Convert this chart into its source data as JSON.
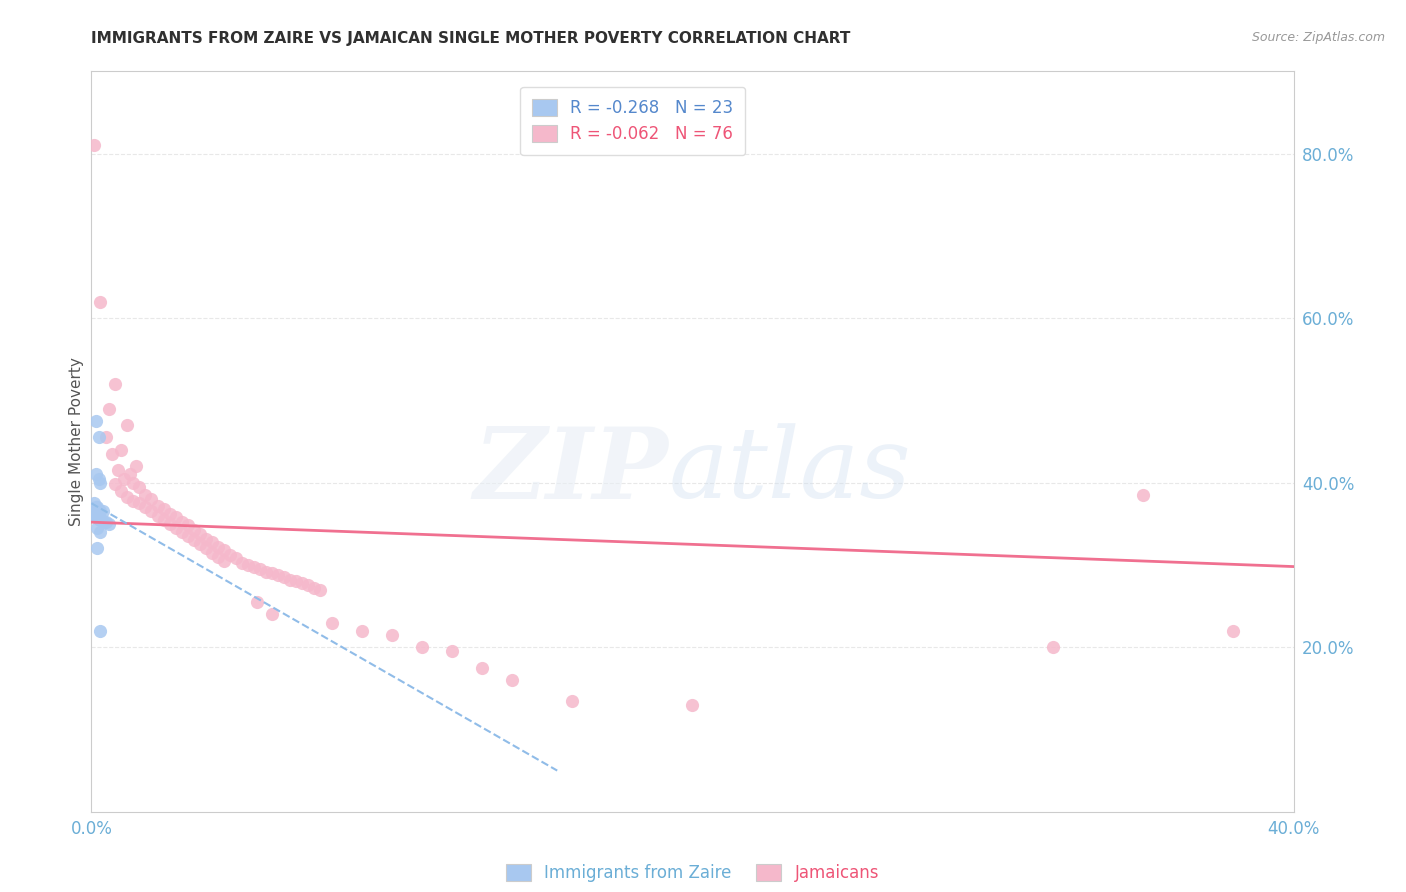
{
  "title": "IMMIGRANTS FROM ZAIRE VS JAMAICAN SINGLE MOTHER POVERTY CORRELATION CHART",
  "source": "Source: ZipAtlas.com",
  "ylabel": "Single Mother Poverty",
  "right_yticks": [
    0.2,
    0.4,
    0.6,
    0.8
  ],
  "right_yticklabels": [
    "20.0%",
    "40.0%",
    "60.0%",
    "80.0%"
  ],
  "xlim": [
    0.0,
    0.4
  ],
  "ylim": [
    0.0,
    0.9
  ],
  "blue_color": "#a8c8f0",
  "pink_color": "#f5b8cb",
  "blue_line_color": "#90bce8",
  "pink_line_color": "#f07090",
  "axis_color": "#6baed6",
  "grid_color": "#e8e8e8",
  "title_color": "#303030",
  "source_color": "#999999",
  "ylabel_color": "#555555",
  "zaire_points": [
    [
      0.0015,
      0.475
    ],
    [
      0.0025,
      0.455
    ],
    [
      0.0015,
      0.41
    ],
    [
      0.0025,
      0.405
    ],
    [
      0.003,
      0.4
    ],
    [
      0.001,
      0.375
    ],
    [
      0.0015,
      0.37
    ],
    [
      0.002,
      0.37
    ],
    [
      0.0025,
      0.365
    ],
    [
      0.003,
      0.365
    ],
    [
      0.004,
      0.365
    ],
    [
      0.001,
      0.36
    ],
    [
      0.0015,
      0.36
    ],
    [
      0.002,
      0.358
    ],
    [
      0.0025,
      0.356
    ],
    [
      0.003,
      0.355
    ],
    [
      0.004,
      0.354
    ],
    [
      0.005,
      0.352
    ],
    [
      0.006,
      0.35
    ],
    [
      0.002,
      0.345
    ],
    [
      0.003,
      0.34
    ],
    [
      0.002,
      0.32
    ],
    [
      0.003,
      0.22
    ]
  ],
  "jamaican_points": [
    [
      0.001,
      0.81
    ],
    [
      0.003,
      0.62
    ],
    [
      0.008,
      0.52
    ],
    [
      0.006,
      0.49
    ],
    [
      0.012,
      0.47
    ],
    [
      0.005,
      0.455
    ],
    [
      0.01,
      0.44
    ],
    [
      0.007,
      0.435
    ],
    [
      0.015,
      0.42
    ],
    [
      0.009,
      0.415
    ],
    [
      0.013,
      0.41
    ],
    [
      0.011,
      0.405
    ],
    [
      0.014,
      0.4
    ],
    [
      0.008,
      0.398
    ],
    [
      0.016,
      0.395
    ],
    [
      0.01,
      0.39
    ],
    [
      0.018,
      0.385
    ],
    [
      0.012,
      0.382
    ],
    [
      0.02,
      0.38
    ],
    [
      0.014,
      0.378
    ],
    [
      0.016,
      0.375
    ],
    [
      0.022,
      0.372
    ],
    [
      0.018,
      0.37
    ],
    [
      0.024,
      0.368
    ],
    [
      0.02,
      0.365
    ],
    [
      0.026,
      0.362
    ],
    [
      0.022,
      0.36
    ],
    [
      0.028,
      0.358
    ],
    [
      0.024,
      0.355
    ],
    [
      0.03,
      0.352
    ],
    [
      0.026,
      0.35
    ],
    [
      0.032,
      0.348
    ],
    [
      0.028,
      0.345
    ],
    [
      0.034,
      0.342
    ],
    [
      0.03,
      0.34
    ],
    [
      0.036,
      0.338
    ],
    [
      0.032,
      0.335
    ],
    [
      0.038,
      0.332
    ],
    [
      0.034,
      0.33
    ],
    [
      0.04,
      0.328
    ],
    [
      0.036,
      0.325
    ],
    [
      0.042,
      0.322
    ],
    [
      0.038,
      0.32
    ],
    [
      0.044,
      0.318
    ],
    [
      0.04,
      0.315
    ],
    [
      0.046,
      0.312
    ],
    [
      0.042,
      0.31
    ],
    [
      0.048,
      0.308
    ],
    [
      0.044,
      0.305
    ],
    [
      0.05,
      0.302
    ],
    [
      0.052,
      0.3
    ],
    [
      0.054,
      0.298
    ],
    [
      0.056,
      0.295
    ],
    [
      0.058,
      0.292
    ],
    [
      0.06,
      0.29
    ],
    [
      0.062,
      0.288
    ],
    [
      0.064,
      0.285
    ],
    [
      0.066,
      0.282
    ],
    [
      0.068,
      0.28
    ],
    [
      0.07,
      0.278
    ],
    [
      0.072,
      0.275
    ],
    [
      0.074,
      0.272
    ],
    [
      0.076,
      0.27
    ],
    [
      0.055,
      0.255
    ],
    [
      0.06,
      0.24
    ],
    [
      0.08,
      0.23
    ],
    [
      0.09,
      0.22
    ],
    [
      0.1,
      0.215
    ],
    [
      0.11,
      0.2
    ],
    [
      0.12,
      0.195
    ],
    [
      0.13,
      0.175
    ],
    [
      0.14,
      0.16
    ],
    [
      0.16,
      0.135
    ],
    [
      0.2,
      0.13
    ],
    [
      0.32,
      0.2
    ],
    [
      0.35,
      0.385
    ],
    [
      0.38,
      0.22
    ]
  ]
}
